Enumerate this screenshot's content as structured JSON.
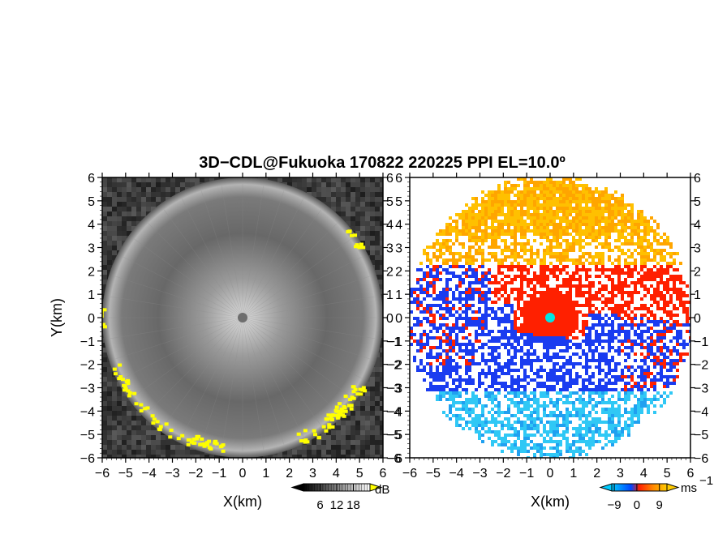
{
  "title": "3D−CDL@Fukuoka 170822 220225 PPI EL=10.0º",
  "chart_data": [
    {
      "type": "heatmap",
      "quantity": "SNR",
      "xlabel": "X(km)",
      "ylabel": "Y(km)",
      "xlim": [
        -6,
        6
      ],
      "ylim": [
        -6,
        6
      ],
      "xticks": [
        -6,
        -5,
        -4,
        -3,
        -2,
        -1,
        0,
        1,
        2,
        3,
        4,
        5,
        6
      ],
      "yticks": [
        -6,
        -5,
        -4,
        -3,
        -2,
        -1,
        0,
        1,
        2,
        3,
        4,
        5,
        6
      ],
      "xtick_labels": [
        "−6",
        "−5",
        "−4",
        "−3",
        "−2",
        "−1",
        "0",
        "1",
        "2",
        "3",
        "4",
        "5",
        "6"
      ],
      "ytick_labels": [
        "−6",
        "−5",
        "−4",
        "−3",
        "−2",
        "−1",
        "0",
        "1",
        "2",
        "3",
        "4",
        "5",
        "6"
      ],
      "colorbar": {
        "unit": "dB",
        "ticks": [
          6,
          12,
          18
        ],
        "tick_labels": [
          "6",
          "12",
          "18"
        ],
        "colors": [
          "#000000",
          "#ffffff"
        ],
        "overflow_color": "#ffff00"
      },
      "colors": {
        "background": "#3a3a3a",
        "center_glow": "#dcdcdc",
        "ring": "#b4b4b4",
        "high_snr": "#ffff00",
        "marker": "#6e6e6e"
      }
    },
    {
      "type": "heatmap",
      "quantity": "Doppler velocity",
      "xlabel": "X(km)",
      "xlim": [
        -6,
        6
      ],
      "ylim": [
        -6,
        6
      ],
      "xticks": [
        -6,
        -5,
        -4,
        -3,
        -2,
        -1,
        0,
        1,
        2,
        3,
        4,
        5,
        6
      ],
      "xtick_labels": [
        "−6",
        "−5",
        "−4",
        "−3",
        "−2",
        "−1",
        "0",
        "1",
        "2",
        "3",
        "4",
        "5",
        "6"
      ],
      "colorbar": {
        "unit": "ms",
        "unit_exponent": "−1",
        "ticks": [
          -9,
          0,
          9
        ],
        "tick_labels": [
          "−9",
          "0",
          "9"
        ],
        "colors": [
          "#00ccff",
          "#0044ff",
          "#ff2200",
          "#ff8800",
          "#ffcc00"
        ]
      },
      "colors": {
        "north": "#ffb000",
        "center": "#ff2000",
        "south_inner": "#1a3cf0",
        "south_outer": "#30c8f5",
        "west": "#1a3cf0",
        "marker": "#00e5e5"
      }
    }
  ]
}
